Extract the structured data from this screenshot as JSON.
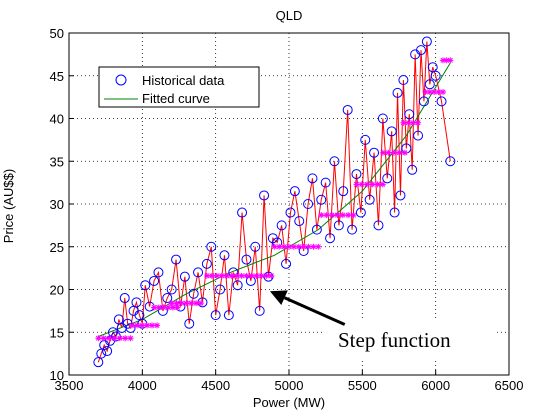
{
  "chart_data": {
    "type": "scatter",
    "title": "QLD",
    "xlabel": "Power (MW)",
    "ylabel": "Price (AU$$)",
    "xlim": [
      3500,
      6500
    ],
    "ylim": [
      10,
      50
    ],
    "xticks": [
      3500,
      4000,
      4500,
      5000,
      5500,
      6000,
      6500
    ],
    "yticks": [
      10,
      15,
      20,
      25,
      30,
      35,
      40,
      45,
      50
    ],
    "grid": true,
    "legend_position": "top-left",
    "legend": [
      {
        "label": "Historical data",
        "marker": "circle",
        "color": "#0000ff"
      },
      {
        "label": "Fitted curve",
        "marker": "line",
        "color": "#008000"
      }
    ],
    "annotation": {
      "text": "Step function",
      "arrow_tip": [
        4870,
        19.8
      ],
      "arrow_tail": [
        5380,
        15.9
      ]
    },
    "series": [
      {
        "name": "Historical data",
        "marker": "circle",
        "color": "#0000ff",
        "x": [
          3700,
          3720,
          3740,
          3760,
          3780,
          3800,
          3820,
          3840,
          3860,
          3880,
          3900,
          3920,
          3940,
          3960,
          3980,
          4000,
          4020,
          4050,
          4080,
          4110,
          4140,
          4170,
          4200,
          4230,
          4260,
          4290,
          4320,
          4350,
          4380,
          4410,
          4440,
          4470,
          4500,
          4530,
          4560,
          4590,
          4620,
          4650,
          4680,
          4710,
          4740,
          4770,
          4800,
          4830,
          4860,
          4890,
          4920,
          4950,
          4980,
          5010,
          5040,
          5070,
          5100,
          5130,
          5160,
          5190,
          5220,
          5250,
          5280,
          5310,
          5340,
          5370,
          5400,
          5430,
          5460,
          5490,
          5520,
          5550,
          5580,
          5610,
          5640,
          5670,
          5700,
          5720,
          5740,
          5760,
          5780,
          5800,
          5820,
          5840,
          5860,
          5880,
          5900,
          5920,
          5940,
          5960,
          5980,
          6000,
          6040,
          6100
        ],
        "y": [
          11.5,
          12.5,
          13.5,
          12.8,
          14.0,
          15.0,
          14.5,
          16.5,
          15.5,
          19.0,
          16.0,
          15.5,
          17.5,
          18.5,
          17.0,
          16.0,
          20.5,
          18.0,
          21.0,
          22.0,
          17.5,
          19.0,
          20.0,
          23.5,
          18.0,
          21.5,
          16.0,
          19.5,
          22.0,
          18.5,
          23.0,
          25.0,
          17.0,
          20.0,
          24.0,
          17.0,
          22.0,
          20.5,
          29.0,
          23.5,
          21.0,
          25.0,
          17.5,
          31.0,
          21.5,
          26.0,
          25.5,
          27.5,
          23.0,
          29.0,
          31.5,
          28.0,
          24.5,
          30.0,
          33.0,
          27.0,
          30.5,
          32.5,
          26.0,
          35.0,
          27.5,
          31.5,
          41.0,
          27.0,
          33.5,
          29.0,
          37.5,
          30.5,
          36.0,
          27.5,
          40.0,
          33.0,
          38.5,
          29.0,
          43.0,
          31.0,
          44.5,
          36.5,
          40.5,
          34.0,
          47.5,
          38.0,
          48.0,
          42.0,
          49.0,
          44.0,
          46.0,
          45.0,
          42.0,
          35.0
        ]
      },
      {
        "name": "Fitted curve",
        "marker": "line",
        "color": "#008000",
        "x": [
          3700,
          4000,
          4300,
          4600,
          4900,
          5200,
          5500,
          5800,
          6100
        ],
        "y": [
          14.5,
          16.5,
          19.5,
          22.0,
          24.0,
          27.0,
          31.5,
          38.0,
          46.5
        ]
      },
      {
        "name": "",
        "marker": "step",
        "color": "#ff00ff",
        "steps": [
          {
            "x0": 3700,
            "x1": 3920,
            "y": 14.3
          },
          {
            "x0": 3930,
            "x1": 4100,
            "y": 15.8
          },
          {
            "x0": 4080,
            "x1": 4240,
            "y": 17.9
          },
          {
            "x0": 4200,
            "x1": 4400,
            "y": 18.4
          },
          {
            "x0": 4440,
            "x1": 4880,
            "y": 21.6
          },
          {
            "x0": 4900,
            "x1": 5200,
            "y": 25.0
          },
          {
            "x0": 5220,
            "x1": 5440,
            "y": 28.7
          },
          {
            "x0": 5460,
            "x1": 5640,
            "y": 32.3
          },
          {
            "x0": 5640,
            "x1": 5790,
            "y": 36.0
          },
          {
            "x0": 5780,
            "x1": 5880,
            "y": 39.5
          },
          {
            "x0": 5930,
            "x1": 6050,
            "y": 43.1
          },
          {
            "x0": 6050,
            "x1": 6100,
            "y": 46.8
          }
        ]
      }
    ]
  }
}
